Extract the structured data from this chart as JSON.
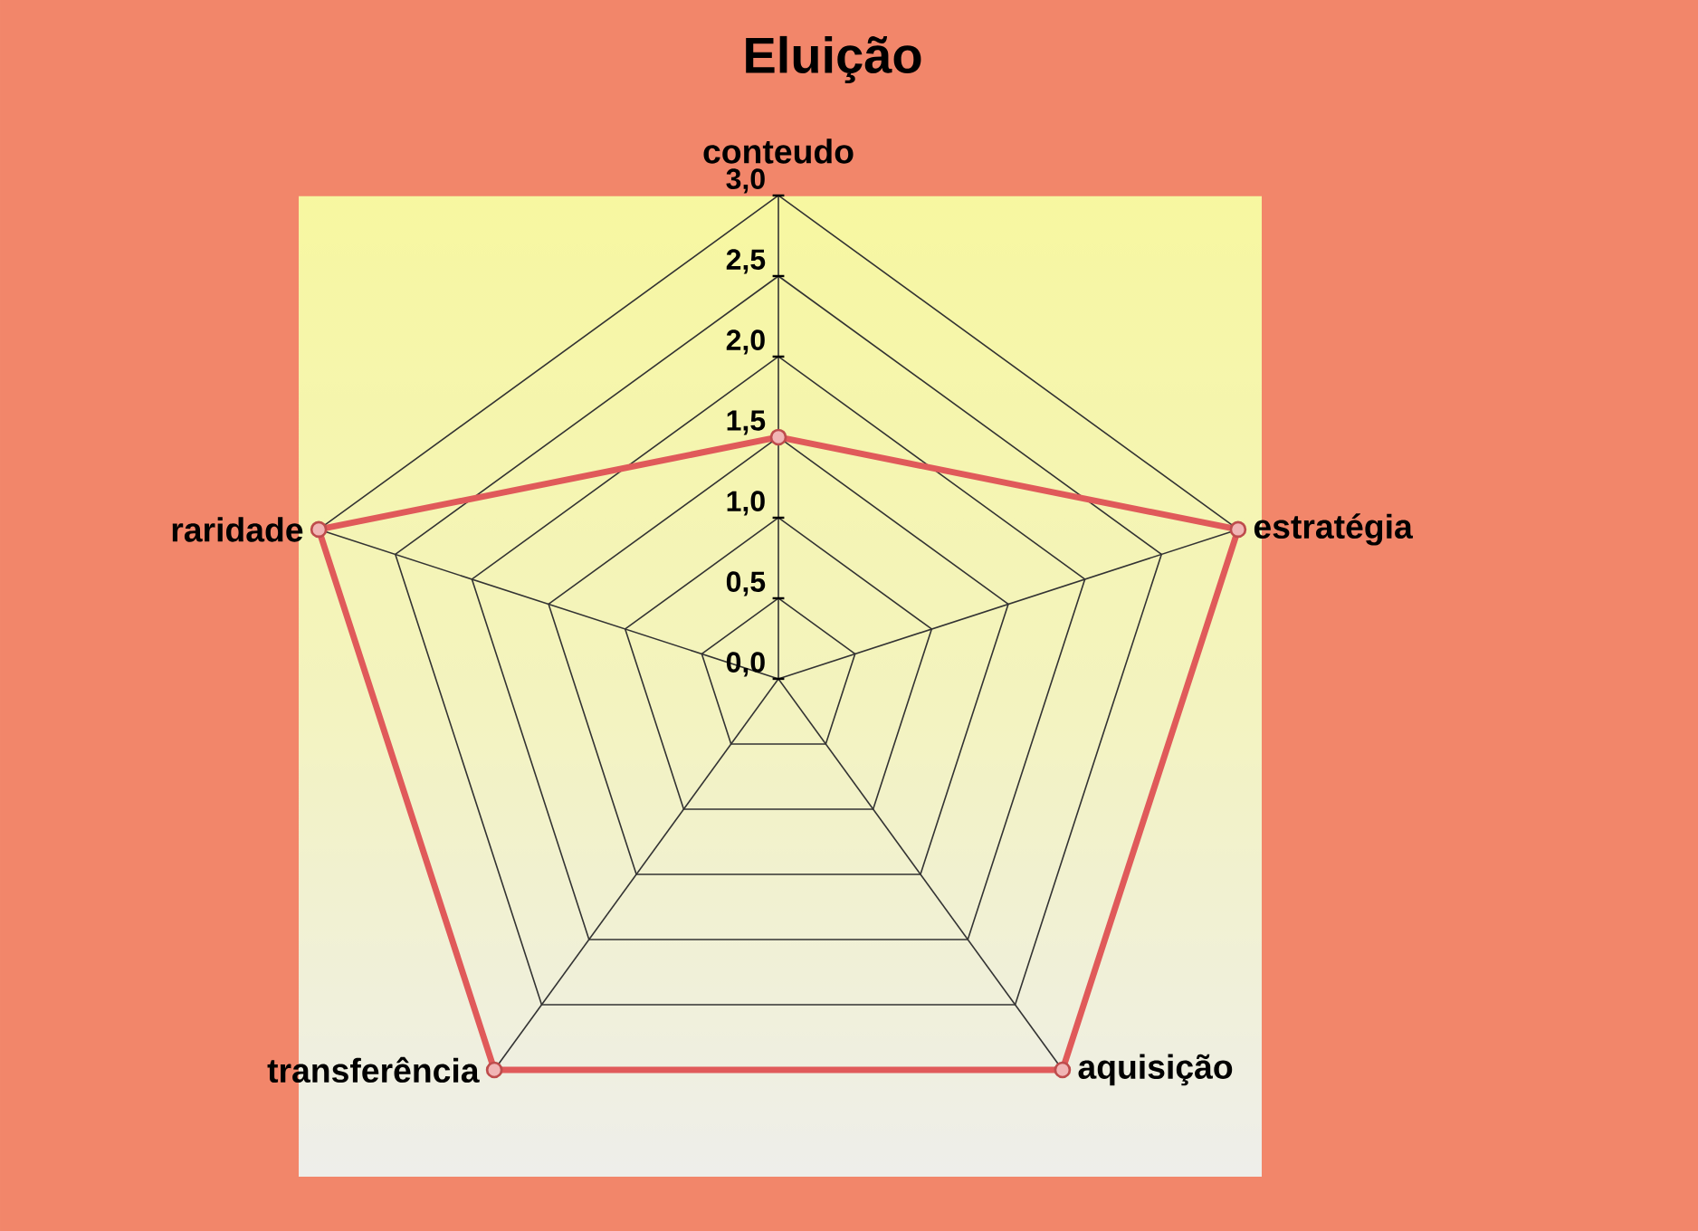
{
  "chart_data": {
    "type": "radar",
    "title": "Eluição",
    "categories": [
      "conteudo",
      "estratégia",
      "aquisição",
      "transferência",
      "raridade"
    ],
    "series": [
      {
        "color": "#e05a5a",
        "values": [
          1.5,
          3.0,
          3.0,
          3.0,
          3.0
        ]
      }
    ],
    "ylim": [
      0,
      3
    ],
    "yticks": [
      {
        "value": 0,
        "label": "0,0"
      },
      {
        "value": 0.5,
        "label": "0,5"
      },
      {
        "value": 1,
        "label": "1,0"
      },
      {
        "value": 1.5,
        "label": "1,5"
      },
      {
        "value": 2,
        "label": "2,0"
      },
      {
        "value": 2.5,
        "label": "2,5"
      },
      {
        "value": 3,
        "label": "3,0"
      }
    ],
    "grid": true,
    "marker": "circle"
  }
}
